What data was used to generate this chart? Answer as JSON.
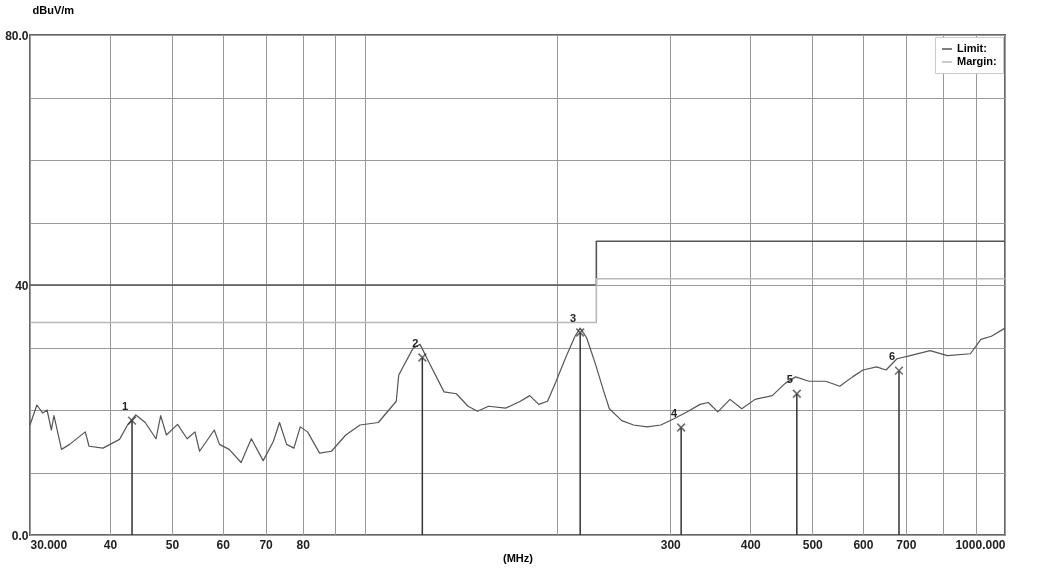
{
  "chart_data": {
    "type": "line",
    "xlabel": "(MHz)",
    "ylabel": "dBuV/m",
    "log": "x",
    "grid": true,
    "legend": "top right",
    "xlim": [
      30,
      1000
    ],
    "ylim": [
      0,
      80
    ],
    "xticks": [
      {
        "value": 30,
        "label": "30.000"
      },
      40,
      50,
      60,
      70,
      80,
      {
        "value": 90,
        "label": null
      },
      {
        "value": 100,
        "label": null
      },
      {
        "value": 200,
        "label": null
      },
      300,
      400,
      500,
      600,
      700,
      {
        "value": 800,
        "label": null
      },
      {
        "value": 900,
        "label": null
      },
      {
        "value": 1000,
        "label": "1000.000"
      }
    ],
    "yticks": [
      {
        "value": 0,
        "label": "0.0"
      },
      {
        "value": 10,
        "label": null
      },
      {
        "value": 20,
        "label": null
      },
      {
        "value": 30,
        "label": null
      },
      40,
      {
        "value": 50,
        "label": null
      },
      {
        "value": 60,
        "label": null
      },
      {
        "value": 70,
        "label": null
      },
      {
        "value": 80,
        "label": "80.0"
      }
    ],
    "series": [
      {
        "color": "#555555",
        "x": [
          30,
          30.75,
          31.4,
          31.9,
          32.4,
          32.7,
          33.6,
          34.6,
          36.6,
          37.1,
          39.0,
          41.4,
          42.6,
          43.9,
          45.4,
          47.2,
          48.0,
          49.0,
          51.0,
          52.8,
          54.3,
          55.2,
          58.2,
          59.3,
          61.4,
          64.1,
          66.5,
          69.4,
          72.0,
          73.6,
          75.5,
          77.5,
          79.3,
          81.4,
          85.0,
          88.7,
          93.4,
          98.3,
          105,
          112,
          113,
          119,
          122,
          126,
          133,
          139,
          145,
          150,
          156,
          166,
          175,
          181,
          187,
          193,
          199,
          206,
          213,
          217,
          222,
          229,
          236,
          241,
          252,
          263,
          276,
          290,
          304,
          320,
          334,
          344,
          356,
          372,
          388,
          407,
          433,
          454,
          471,
          494,
          525,
          552,
          578,
          600,
          630,
          652,
          678,
          711,
          764,
          813,
          883,
          917,
          952,
          1000
        ],
        "values": [
          17.6,
          20.8,
          19.5,
          20.0,
          16.8,
          19.1,
          13.7,
          14.5,
          16.5,
          14.2,
          13.9,
          15.3,
          17.6,
          19.2,
          18.0,
          15.4,
          19.1,
          16.0,
          17.7,
          15.4,
          16.5,
          13.4,
          16.8,
          14.5,
          13.7,
          11.6,
          15.4,
          11.9,
          15.0,
          18.0,
          14.5,
          13.9,
          17.3,
          16.5,
          13.1,
          13.4,
          16.0,
          17.6,
          18.0,
          21.4,
          25.6,
          29.9,
          30.5,
          27.6,
          22.9,
          22.6,
          20.6,
          19.8,
          20.6,
          20.3,
          21.4,
          22.3,
          20.9,
          21.4,
          24.6,
          28.4,
          31.8,
          33.1,
          31.6,
          27.5,
          23.1,
          20.2,
          18.3,
          17.6,
          17.3,
          17.6,
          18.6,
          19.8,
          20.9,
          21.2,
          19.7,
          21.7,
          20.2,
          21.7,
          22.3,
          24.3,
          25.3,
          24.6,
          24.6,
          23.8,
          25.3,
          26.4,
          26.9,
          26.4,
          28.2,
          28.7,
          29.5,
          28.7,
          29.0,
          31.3,
          31.8,
          33.1
        ]
      },
      {
        "type": "step",
        "name": "Limit:",
        "color": "#555555",
        "x": [
          30,
          230,
          1000
        ],
        "values": [
          40,
          47,
          47
        ]
      },
      {
        "type": "step",
        "name": "Margin:",
        "color": "#b8b8b8",
        "x": [
          30,
          230,
          1000
        ],
        "values": [
          34,
          41,
          41
        ]
      },
      {
        "type": "lollipop",
        "marker": "cross",
        "color": "#333333",
        "x": [
          43.3,
          123,
          217,
          312,
          473,
          683
        ],
        "values": [
          18.3,
          28.4,
          32.4,
          17.2,
          22.6,
          26.3
        ]
      }
    ],
    "annotations": [
      {
        "text": "1",
        "x": 43.3,
        "y": 18.3
      },
      {
        "text": "2",
        "x": 123,
        "y": 28.4
      },
      {
        "text": "3",
        "x": 217,
        "y": 32.4
      },
      {
        "text": "4",
        "x": 312,
        "y": 17.2
      },
      {
        "text": "5",
        "x": 473,
        "y": 22.6
      },
      {
        "text": "6",
        "x": 683,
        "y": 26.3
      }
    ]
  }
}
